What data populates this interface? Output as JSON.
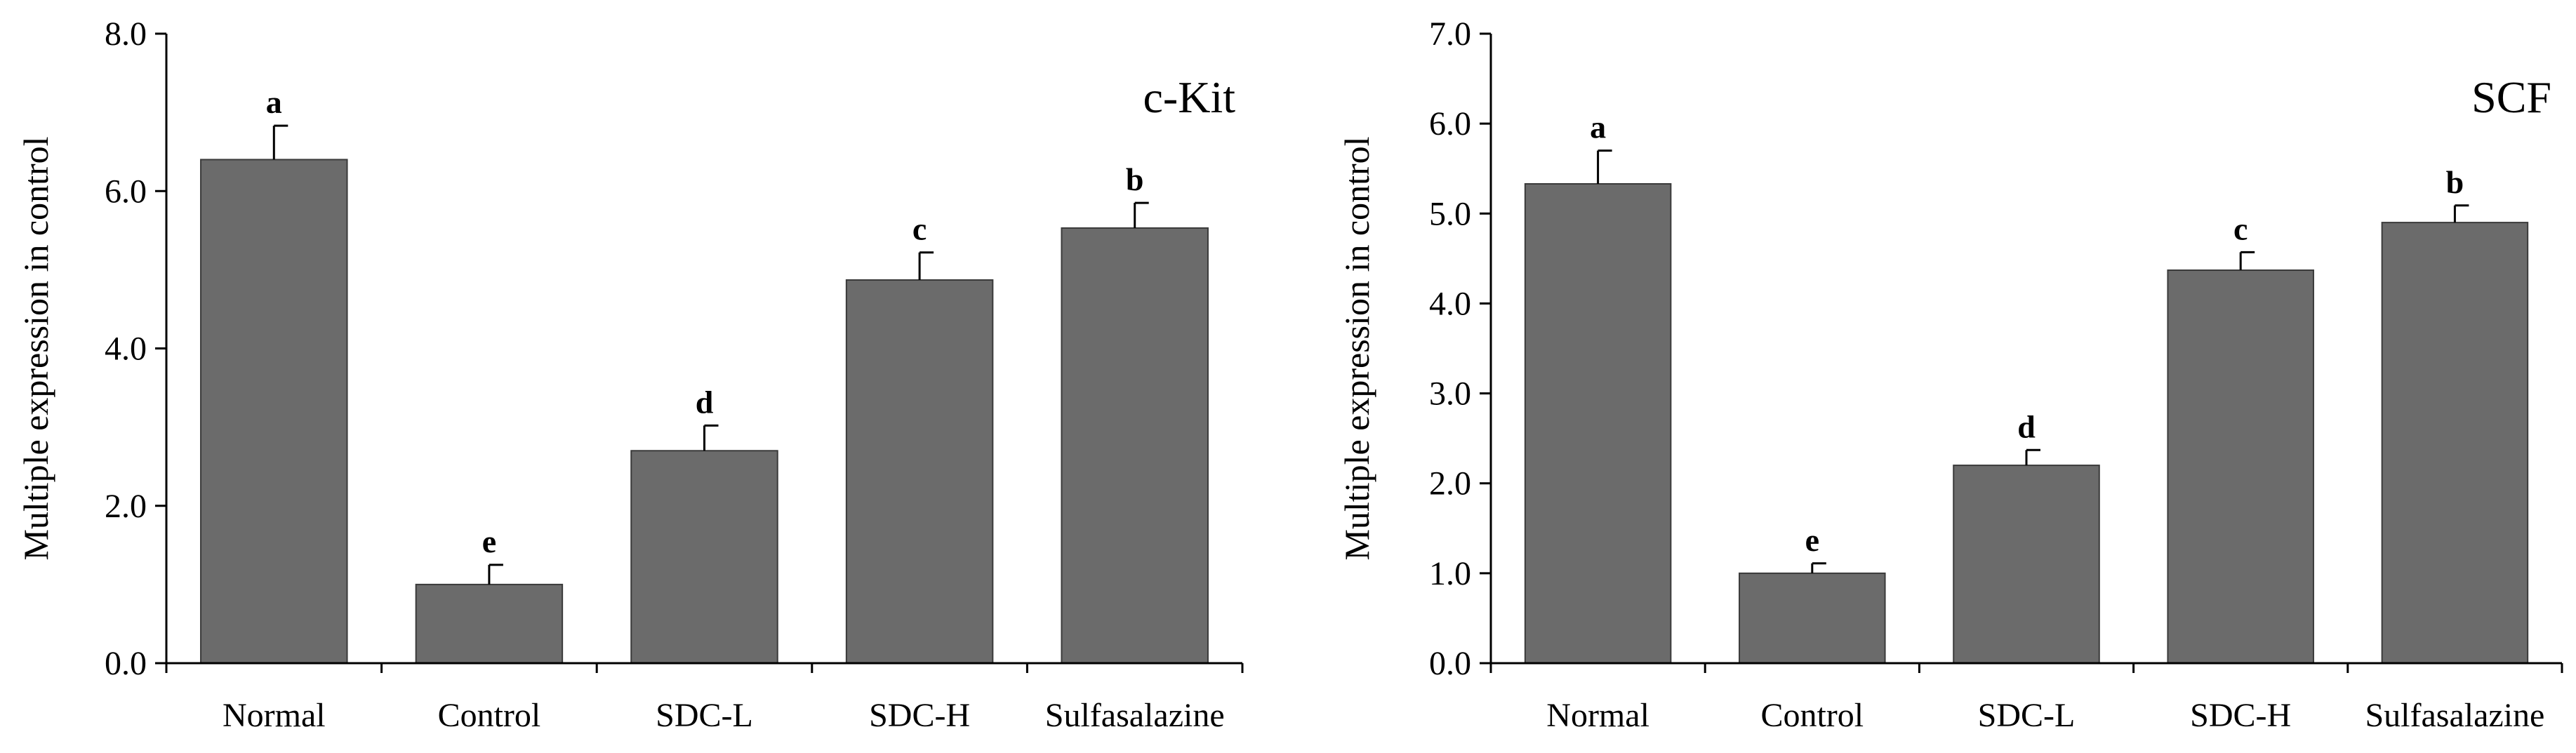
{
  "chart_data": [
    {
      "type": "bar",
      "title": "c-Kit",
      "xlabel": "",
      "ylabel": "Multiple expression in control",
      "categories": [
        "Normal",
        "Control",
        "SDC-L",
        "SDC-H",
        "Sulfasalazine"
      ],
      "values": [
        6.4,
        1.0,
        2.7,
        4.87,
        5.53
      ],
      "errors": [
        0.43,
        0.25,
        0.32,
        0.35,
        0.32
      ],
      "significance": [
        "a",
        "e",
        "d",
        "c",
        "b"
      ],
      "ylim": [
        0,
        8
      ],
      "yticks": [
        0,
        2,
        4,
        6,
        8
      ],
      "ytick_labels": [
        "0.0",
        "2.0",
        "4.0",
        "6.0",
        "8.0"
      ],
      "grid": false,
      "bar_color": "#6b6b6b"
    },
    {
      "type": "bar",
      "title": "SCF",
      "xlabel": "",
      "ylabel": "Multiple expression in control",
      "categories": [
        "Normal",
        "Control",
        "SDC-L",
        "SDC-H",
        "Sulfasalazine"
      ],
      "values": [
        5.33,
        1.0,
        2.2,
        4.37,
        4.9
      ],
      "errors": [
        0.37,
        0.11,
        0.17,
        0.2,
        0.19
      ],
      "significance": [
        "a",
        "e",
        "d",
        "c",
        "b"
      ],
      "ylim": [
        0,
        7
      ],
      "yticks": [
        0,
        1,
        2,
        3,
        4,
        5,
        6,
        7
      ],
      "ytick_labels": [
        "0.0",
        "1.0",
        "2.0",
        "3.0",
        "4.0",
        "5.0",
        "6.0",
        "7.0"
      ],
      "grid": false,
      "bar_color": "#6b6b6b"
    }
  ]
}
